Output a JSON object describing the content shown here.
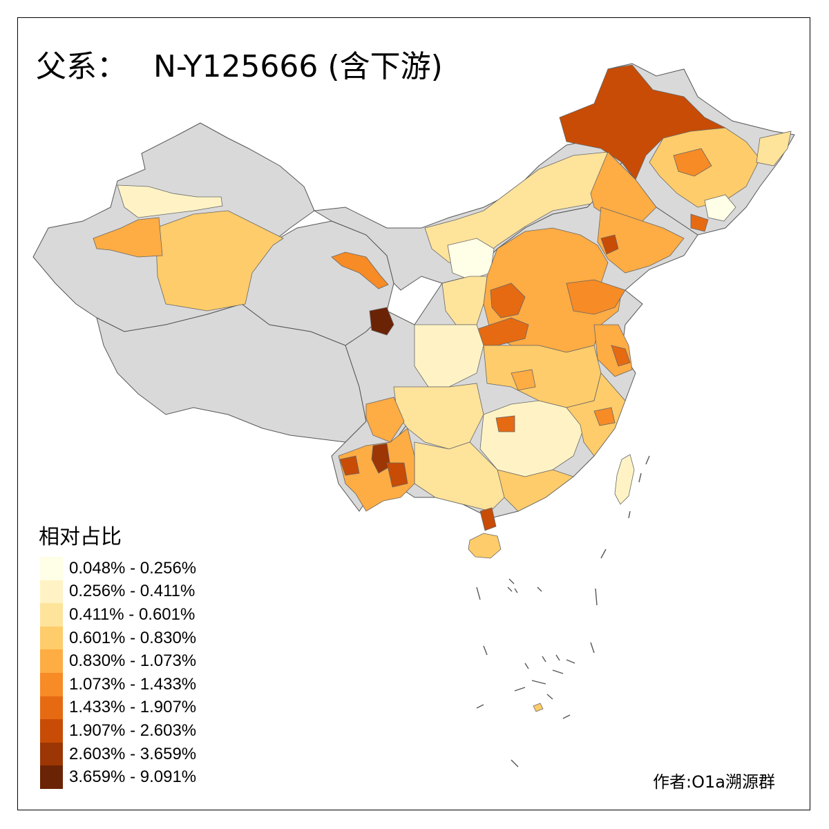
{
  "map": {
    "title_prefix": "父系：",
    "title_code": "N-Y125666 (含下游)",
    "no_data_color": "#d9d9d9",
    "border_color": "#555555"
  },
  "legend": {
    "title": "相对占比",
    "items": [
      {
        "label": "0.048% - 0.256%",
        "color": "#fffee6"
      },
      {
        "label": "0.256% - 0.411%",
        "color": "#fff3c5"
      },
      {
        "label": "0.411% - 0.601%",
        "color": "#fee39b"
      },
      {
        "label": "0.601% - 0.830%",
        "color": "#fecc6a"
      },
      {
        "label": "0.830% - 1.073%",
        "color": "#feac44"
      },
      {
        "label": "1.073% - 1.433%",
        "color": "#f78b26"
      },
      {
        "label": "1.433% - 1.907%",
        "color": "#e66a12"
      },
      {
        "label": "1.907% - 2.603%",
        "color": "#c84c05"
      },
      {
        "label": "2.603% - 3.659%",
        "color": "#9c3604"
      },
      {
        "label": "3.659% - 9.091%",
        "color": "#6b2305"
      }
    ]
  },
  "author": "作者:O1a溯源群"
}
